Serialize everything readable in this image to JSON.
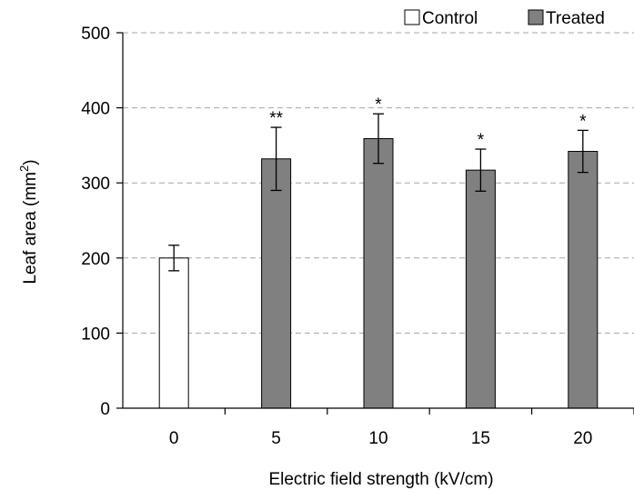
{
  "chart_data": {
    "type": "bar",
    "categories": [
      "0",
      "5",
      "10",
      "15",
      "20"
    ],
    "series": [
      {
        "name": "Control",
        "color": "#ffffff",
        "values": [
          200,
          null,
          null,
          null,
          null
        ],
        "errors": [
          17,
          null,
          null,
          null,
          null
        ]
      },
      {
        "name": "Treated",
        "color": "#808080",
        "values": [
          null,
          332,
          359,
          317,
          342
        ],
        "errors": [
          null,
          42,
          33,
          28,
          28
        ]
      }
    ],
    "annotations": [
      "",
      "**",
      "*",
      "*",
      "*"
    ],
    "xlabel": "Electric field strength (kV/cm)",
    "ylabel": {
      "prefix": "Leaf area (mm",
      "superscript": "2",
      "suffix": ")"
    },
    "ylim": [
      0,
      500
    ],
    "yticks": [
      0,
      100,
      200,
      300,
      400,
      500
    ],
    "grid": "dashed horizontal",
    "legend_position": "top-right"
  }
}
